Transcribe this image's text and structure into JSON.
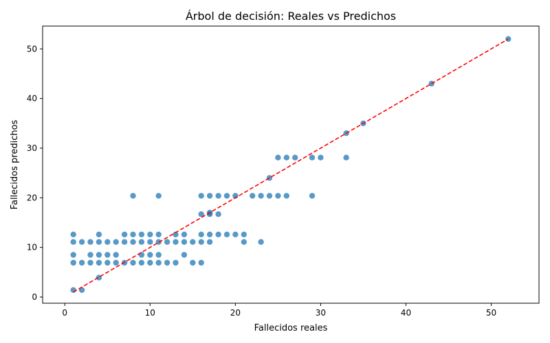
{
  "chart_data": {
    "type": "scatter",
    "title": "Árbol de decisión: Reales vs Predichos",
    "xlabel": "Fallecidos reales",
    "ylabel": "Fallecidos predichos",
    "xlim": [
      -2.6,
      55.6
    ],
    "ylim": [
      -1.25,
      54.6
    ],
    "xticks": [
      0,
      10,
      20,
      30,
      40,
      50
    ],
    "yticks": [
      0,
      10,
      20,
      30,
      40,
      50
    ],
    "grid": false,
    "point_color": "#1f77b4",
    "reference_line": {
      "from": [
        1,
        1
      ],
      "to": [
        52,
        52
      ],
      "color": "#ff0000",
      "style": "dashed"
    },
    "points": [
      [
        1,
        1.4
      ],
      [
        2,
        1.4
      ],
      [
        4,
        3.9
      ],
      [
        1,
        6.9
      ],
      [
        2,
        6.9
      ],
      [
        3,
        6.9
      ],
      [
        4,
        6.9
      ],
      [
        5,
        6.9
      ],
      [
        6,
        6.9
      ],
      [
        7,
        6.9
      ],
      [
        8,
        6.9
      ],
      [
        9,
        6.9
      ],
      [
        10,
        6.9
      ],
      [
        11,
        6.9
      ],
      [
        12,
        6.9
      ],
      [
        13,
        6.9
      ],
      [
        15,
        6.9
      ],
      [
        16,
        6.9
      ],
      [
        1,
        8.5
      ],
      [
        3,
        8.5
      ],
      [
        4,
        8.5
      ],
      [
        5,
        8.5
      ],
      [
        6,
        8.5
      ],
      [
        9,
        8.5
      ],
      [
        10,
        8.5
      ],
      [
        11,
        8.5
      ],
      [
        14,
        8.5
      ],
      [
        1,
        11.1
      ],
      [
        2,
        11.1
      ],
      [
        3,
        11.1
      ],
      [
        4,
        11.1
      ],
      [
        5,
        11.1
      ],
      [
        6,
        11.1
      ],
      [
        7,
        11.1
      ],
      [
        8,
        11.1
      ],
      [
        9,
        11.1
      ],
      [
        10,
        11.1
      ],
      [
        11,
        11.1
      ],
      [
        12,
        11.1
      ],
      [
        13,
        11.1
      ],
      [
        14,
        11.1
      ],
      [
        15,
        11.1
      ],
      [
        16,
        11.1
      ],
      [
        17,
        11.1
      ],
      [
        21,
        11.1
      ],
      [
        23,
        11.1
      ],
      [
        1,
        12.6
      ],
      [
        4,
        12.6
      ],
      [
        7,
        12.6
      ],
      [
        8,
        12.6
      ],
      [
        9,
        12.6
      ],
      [
        10,
        12.6
      ],
      [
        11,
        12.6
      ],
      [
        13,
        12.6
      ],
      [
        14,
        12.6
      ],
      [
        16,
        12.6
      ],
      [
        17,
        12.6
      ],
      [
        18,
        12.6
      ],
      [
        19,
        12.6
      ],
      [
        20,
        12.6
      ],
      [
        21,
        12.6
      ],
      [
        16,
        16.7
      ],
      [
        17,
        16.7
      ],
      [
        18,
        16.7
      ],
      [
        17,
        17.0
      ],
      [
        8,
        20.4
      ],
      [
        11,
        20.4
      ],
      [
        16,
        20.4
      ],
      [
        17,
        20.4
      ],
      [
        18,
        20.4
      ],
      [
        19,
        20.4
      ],
      [
        20,
        20.4
      ],
      [
        22,
        20.4
      ],
      [
        23,
        20.4
      ],
      [
        24,
        20.4
      ],
      [
        25,
        20.4
      ],
      [
        26,
        20.4
      ],
      [
        29,
        20.4
      ],
      [
        24,
        24.0
      ],
      [
        25,
        28.1
      ],
      [
        26,
        28.1
      ],
      [
        27,
        28.1
      ],
      [
        29,
        28.1
      ],
      [
        30,
        28.1
      ],
      [
        33,
        28.1
      ],
      [
        33,
        33
      ],
      [
        35,
        35
      ],
      [
        43,
        43
      ],
      [
        52,
        52
      ]
    ]
  }
}
